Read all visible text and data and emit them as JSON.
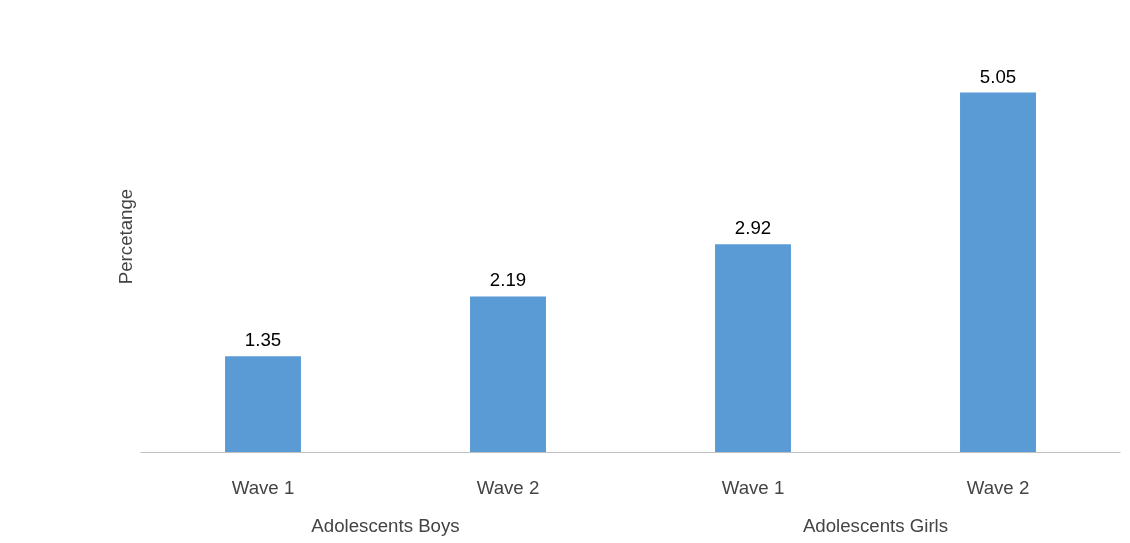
{
  "chart_data": {
    "type": "bar",
    "ylabel": "Percetange",
    "categories": [
      "Wave 1",
      "Wave 2",
      "Wave 1",
      "Wave 2"
    ],
    "values": [
      1.35,
      2.19,
      2.92,
      5.05
    ],
    "color": "#5b9bd5",
    "data_labels": true,
    "grid": false,
    "annotations": [
      "Adolescents Boys",
      "Adolescents Girls"
    ]
  }
}
